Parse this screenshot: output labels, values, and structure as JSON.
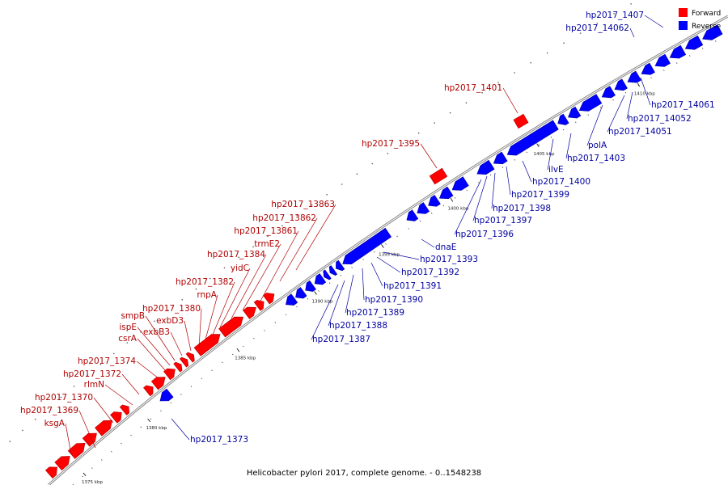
{
  "caption": "Helicobacter pylori 2017, complete genome. - 0..1548238",
  "legend": [
    {
      "label": "Forward",
      "color": "#ff0000"
    },
    {
      "label": "Reverse",
      "color": "#0000ff"
    }
  ],
  "colors": {
    "forward": "#ff0000",
    "reverse": "#0000ff",
    "backbone": "#555555"
  },
  "ticks": [
    "1375 kbp",
    "1380 kbp",
    "1385 kbp",
    "1390 kbp",
    "1395 kbp",
    "1400 kbp",
    "1405 kbp",
    "1410 kbp"
  ],
  "forward_labels": [
    "ksgA",
    "hp2017_1369",
    "hp2017_1370",
    "rlmN",
    "hp2017_1372",
    "hp2017_1374",
    "csrA",
    "ispE",
    "smpB",
    "exbB3",
    "exbD3",
    "hp2017_1380",
    "rnpA",
    "hp2017_1382",
    "yidC",
    "hp2017_1384",
    "trmE2",
    "hp2017_13861",
    "hp2017_13862",
    "hp2017_13863",
    "hp2017_1395",
    "hp2017_1401"
  ],
  "reverse_labels": [
    "hp2017_1373",
    "hp2017_1387",
    "hp2017_1388",
    "hp2017_1389",
    "hp2017_1390",
    "hp2017_1391",
    "hp2017_1392",
    "hp2017_1393",
    "dnaE",
    "hp2017_1396",
    "hp2017_1397",
    "hp2017_1398",
    "hp2017_1399",
    "hp2017_1400",
    "ilvE",
    "hp2017_1403",
    "polA",
    "hp2017_14051",
    "hp2017_14052",
    "hp2017_14061",
    "hp2017_14062",
    "hp2017_1407"
  ]
}
